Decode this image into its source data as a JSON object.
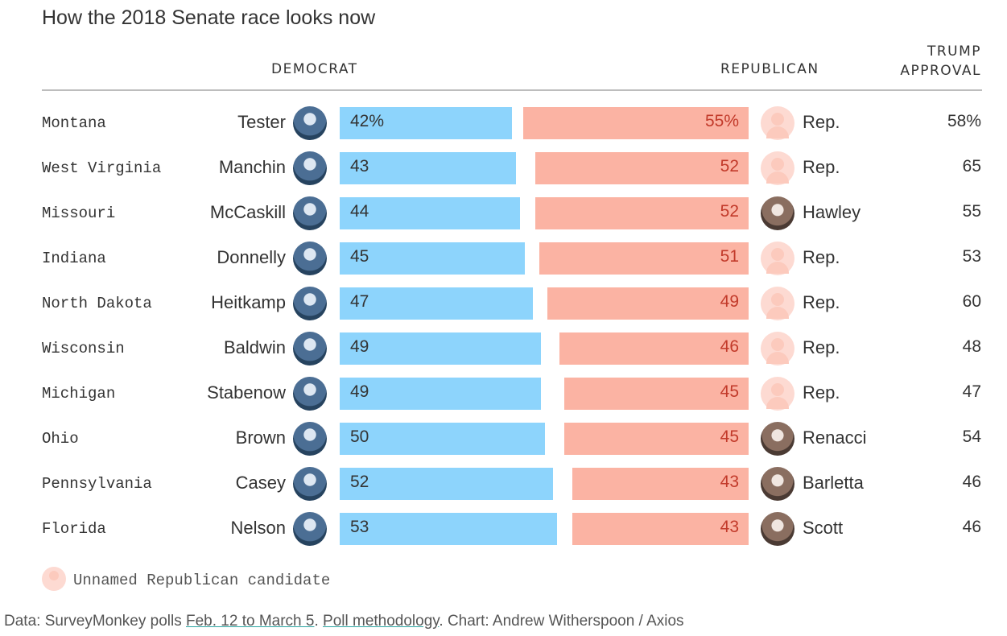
{
  "chart_data": {
    "type": "bar",
    "title": "How the 2018 Senate race looks now",
    "column_headers": {
      "democrat": "DEMOCRAT",
      "republican": "REPUBLICAN",
      "trump_approval_line1": "TRUMP",
      "trump_approval_line2": "APPROVAL"
    },
    "rows": [
      {
        "state": "Montana",
        "democrat": "Tester",
        "dem": 42,
        "dem_label": "42%",
        "republican": "Rep.",
        "rep": 55,
        "rep_label": "55%",
        "rep_named": false,
        "trump": 58,
        "trump_label": "58%"
      },
      {
        "state": "West Virginia",
        "democrat": "Manchin",
        "dem": 43,
        "dem_label": "43",
        "republican": "Rep.",
        "rep": 52,
        "rep_label": "52",
        "rep_named": false,
        "trump": 65,
        "trump_label": "65"
      },
      {
        "state": "Missouri",
        "democrat": "McCaskill",
        "dem": 44,
        "dem_label": "44",
        "republican": "Hawley",
        "rep": 52,
        "rep_label": "52",
        "rep_named": true,
        "trump": 55,
        "trump_label": "55"
      },
      {
        "state": "Indiana",
        "democrat": "Donnelly",
        "dem": 45,
        "dem_label": "45",
        "republican": "Rep.",
        "rep": 51,
        "rep_label": "51",
        "rep_named": false,
        "trump": 53,
        "trump_label": "53"
      },
      {
        "state": "North Dakota",
        "democrat": "Heitkamp",
        "dem": 47,
        "dem_label": "47",
        "republican": "Rep.",
        "rep": 49,
        "rep_label": "49",
        "rep_named": false,
        "trump": 60,
        "trump_label": "60"
      },
      {
        "state": "Wisconsin",
        "democrat": "Baldwin",
        "dem": 49,
        "dem_label": "49",
        "republican": "Rep.",
        "rep": 46,
        "rep_label": "46",
        "rep_named": false,
        "trump": 48,
        "trump_label": "48"
      },
      {
        "state": "Michigan",
        "democrat": "Stabenow",
        "dem": 49,
        "dem_label": "49",
        "republican": "Rep.",
        "rep": 45,
        "rep_label": "45",
        "rep_named": false,
        "trump": 47,
        "trump_label": "47"
      },
      {
        "state": "Ohio",
        "democrat": "Brown",
        "dem": 50,
        "dem_label": "50",
        "republican": "Renacci",
        "rep": 45,
        "rep_label": "45",
        "rep_named": true,
        "trump": 54,
        "trump_label": "54"
      },
      {
        "state": "Pennsylvania",
        "democrat": "Casey",
        "dem": 52,
        "dem_label": "52",
        "republican": "Barletta",
        "rep": 43,
        "rep_label": "43",
        "rep_named": true,
        "trump": 46,
        "trump_label": "46"
      },
      {
        "state": "Florida",
        "democrat": "Nelson",
        "dem": 53,
        "dem_label": "53",
        "republican": "Scott",
        "rep": 43,
        "rep_label": "43",
        "rep_named": true,
        "trump": 46,
        "trump_label": "46"
      }
    ],
    "legend": "Unnamed Republican candidate",
    "colors": {
      "democrat": "#8dd4fc",
      "republican": "#fbb3a3",
      "republican_text": "#c23a2a"
    }
  },
  "footer": {
    "prefix": "Data: SurveyMonkey polls ",
    "link1": "Feb. 12 to March 5",
    "mid": ". ",
    "link2": "Poll methodology",
    "suffix": ". Chart: Andrew Witherspoon / Axios"
  }
}
